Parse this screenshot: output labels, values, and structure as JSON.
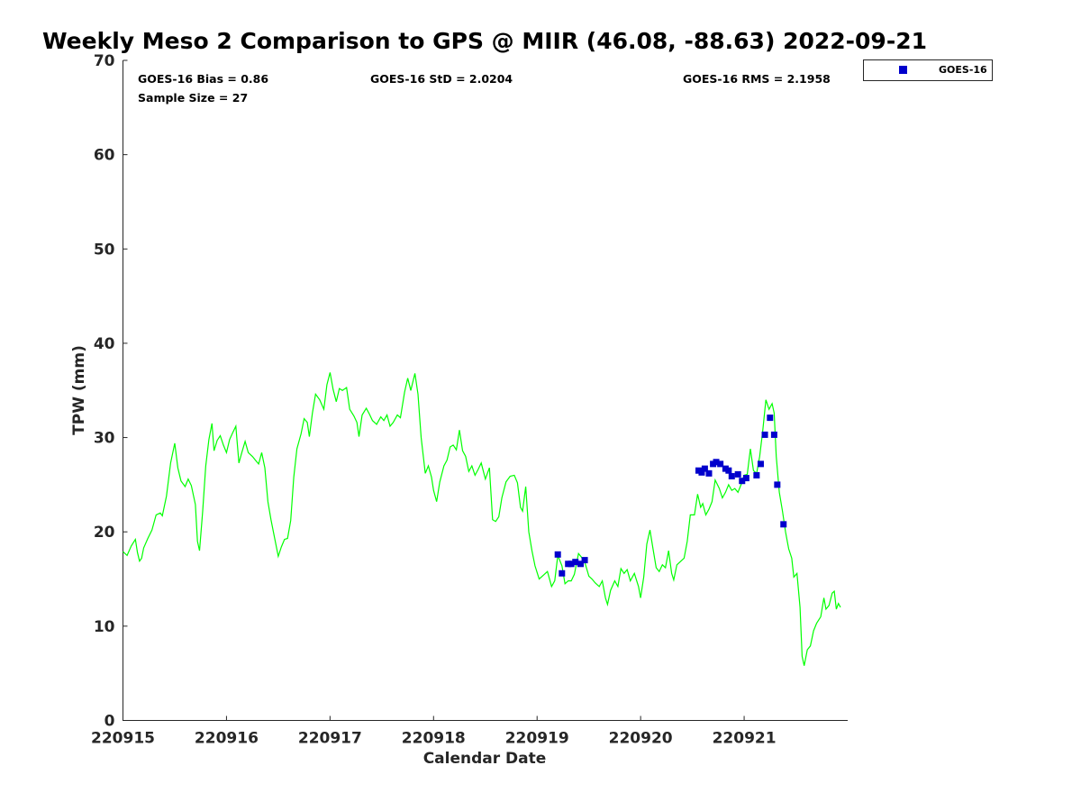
{
  "chart_data": {
    "type": "scatter",
    "title": "Weekly Meso 2 Comparison to GPS @ MIIR (46.08, -88.63) 2022-09-21",
    "xlabel": "Calendar Date",
    "ylabel": "TPW (mm)",
    "xlim": [
      0,
      7
    ],
    "ylim": [
      0,
      70
    ],
    "x_tick_labels": [
      "220915",
      "220916",
      "220917",
      "220918",
      "220919",
      "220920",
      "220921"
    ],
    "x_tick_values": [
      0,
      1,
      2,
      3,
      4,
      5,
      6
    ],
    "y_tick_values": [
      0,
      10,
      20,
      30,
      40,
      50,
      60,
      70
    ],
    "grid": false,
    "legend_position": "top-right, outside plot",
    "stats": {
      "bias": "GOES-16 Bias = 0.86",
      "std": "GOES-16 StD = 2.0204",
      "rms": "GOES-16 RMS = 2.1958",
      "sample": "Sample Size = 27"
    },
    "series": [
      {
        "name": "GOES-16",
        "kind": "scatter",
        "color": "#0000cc",
        "points": [
          [
            4.2,
            17.6
          ],
          [
            4.24,
            15.6
          ],
          [
            4.3,
            16.6
          ],
          [
            4.33,
            16.6
          ],
          [
            4.37,
            16.8
          ],
          [
            4.42,
            16.6
          ],
          [
            4.46,
            17.0
          ],
          [
            5.56,
            26.5
          ],
          [
            5.59,
            26.3
          ],
          [
            5.62,
            26.7
          ],
          [
            5.66,
            26.2
          ],
          [
            5.7,
            27.2
          ],
          [
            5.73,
            27.4
          ],
          [
            5.77,
            27.2
          ],
          [
            5.82,
            26.7
          ],
          [
            5.85,
            26.5
          ],
          [
            5.88,
            25.9
          ],
          [
            5.94,
            26.1
          ],
          [
            5.98,
            25.4
          ],
          [
            6.02,
            25.7
          ],
          [
            6.12,
            26.0
          ],
          [
            6.16,
            27.2
          ],
          [
            6.2,
            30.3
          ],
          [
            6.25,
            32.1
          ],
          [
            6.29,
            30.3
          ],
          [
            6.32,
            25.0
          ],
          [
            6.38,
            20.8
          ]
        ]
      },
      {
        "kind": "line",
        "color": "#00ff00",
        "points": [
          [
            0.0,
            17.9
          ],
          [
            0.04,
            17.5
          ],
          [
            0.08,
            18.5
          ],
          [
            0.12,
            19.2
          ],
          [
            0.14,
            17.8
          ],
          [
            0.16,
            16.9
          ],
          [
            0.18,
            17.2
          ],
          [
            0.2,
            18.3
          ],
          [
            0.24,
            19.3
          ],
          [
            0.28,
            20.2
          ],
          [
            0.32,
            21.8
          ],
          [
            0.36,
            22.0
          ],
          [
            0.38,
            21.7
          ],
          [
            0.42,
            23.8
          ],
          [
            0.46,
            27.3
          ],
          [
            0.5,
            29.4
          ],
          [
            0.53,
            26.8
          ],
          [
            0.56,
            25.4
          ],
          [
            0.6,
            24.8
          ],
          [
            0.63,
            25.6
          ],
          [
            0.66,
            24.9
          ],
          [
            0.7,
            22.9
          ],
          [
            0.72,
            19.0
          ],
          [
            0.74,
            18.0
          ],
          [
            0.77,
            22.2
          ],
          [
            0.8,
            27.0
          ],
          [
            0.83,
            29.8
          ],
          [
            0.86,
            31.5
          ],
          [
            0.88,
            28.6
          ],
          [
            0.91,
            29.7
          ],
          [
            0.94,
            30.2
          ],
          [
            0.97,
            29.2
          ],
          [
            1.0,
            28.4
          ],
          [
            1.03,
            29.8
          ],
          [
            1.06,
            30.5
          ],
          [
            1.09,
            31.2
          ],
          [
            1.12,
            27.3
          ],
          [
            1.15,
            28.5
          ],
          [
            1.18,
            29.6
          ],
          [
            1.21,
            28.4
          ],
          [
            1.25,
            28.0
          ],
          [
            1.28,
            27.6
          ],
          [
            1.31,
            27.2
          ],
          [
            1.34,
            28.4
          ],
          [
            1.37,
            26.8
          ],
          [
            1.4,
            23.2
          ],
          [
            1.43,
            21.3
          ],
          [
            1.46,
            19.6
          ],
          [
            1.5,
            17.4
          ],
          [
            1.53,
            18.4
          ],
          [
            1.56,
            19.2
          ],
          [
            1.59,
            19.3
          ],
          [
            1.62,
            21.2
          ],
          [
            1.65,
            25.8
          ],
          [
            1.68,
            28.8
          ],
          [
            1.72,
            30.4
          ],
          [
            1.75,
            32.0
          ],
          [
            1.78,
            31.6
          ],
          [
            1.8,
            30.1
          ],
          [
            1.83,
            32.6
          ],
          [
            1.86,
            34.6
          ],
          [
            1.9,
            34.0
          ],
          [
            1.94,
            33.0
          ],
          [
            1.97,
            35.6
          ],
          [
            2.0,
            36.9
          ],
          [
            2.03,
            35.1
          ],
          [
            2.06,
            33.8
          ],
          [
            2.09,
            35.2
          ],
          [
            2.12,
            35.0
          ],
          [
            2.16,
            35.3
          ],
          [
            2.19,
            33.0
          ],
          [
            2.23,
            32.3
          ],
          [
            2.26,
            31.6
          ],
          [
            2.28,
            30.1
          ],
          [
            2.31,
            32.4
          ],
          [
            2.35,
            33.1
          ],
          [
            2.38,
            32.5
          ],
          [
            2.41,
            31.8
          ],
          [
            2.45,
            31.4
          ],
          [
            2.49,
            32.2
          ],
          [
            2.52,
            31.8
          ],
          [
            2.55,
            32.4
          ],
          [
            2.58,
            31.2
          ],
          [
            2.61,
            31.6
          ],
          [
            2.65,
            32.4
          ],
          [
            2.68,
            32.1
          ],
          [
            2.72,
            34.8
          ],
          [
            2.75,
            36.3
          ],
          [
            2.78,
            35.0
          ],
          [
            2.82,
            36.8
          ],
          [
            2.85,
            34.6
          ],
          [
            2.88,
            30.0
          ],
          [
            2.92,
            26.2
          ],
          [
            2.95,
            27.0
          ],
          [
            2.98,
            25.8
          ],
          [
            3.0,
            24.4
          ],
          [
            3.03,
            23.2
          ],
          [
            3.06,
            25.3
          ],
          [
            3.1,
            27.0
          ],
          [
            3.13,
            27.6
          ],
          [
            3.16,
            29.0
          ],
          [
            3.19,
            29.2
          ],
          [
            3.22,
            28.7
          ],
          [
            3.25,
            30.8
          ],
          [
            3.28,
            28.6
          ],
          [
            3.31,
            28.0
          ],
          [
            3.34,
            26.4
          ],
          [
            3.37,
            27.0
          ],
          [
            3.4,
            26.0
          ],
          [
            3.43,
            26.6
          ],
          [
            3.46,
            27.3
          ],
          [
            3.5,
            25.6
          ],
          [
            3.54,
            26.8
          ],
          [
            3.57,
            21.3
          ],
          [
            3.6,
            21.1
          ],
          [
            3.63,
            21.6
          ],
          [
            3.66,
            23.6
          ],
          [
            3.7,
            25.3
          ],
          [
            3.74,
            25.9
          ],
          [
            3.78,
            26.0
          ],
          [
            3.81,
            25.2
          ],
          [
            3.84,
            22.6
          ],
          [
            3.86,
            22.2
          ],
          [
            3.89,
            24.8
          ],
          [
            3.92,
            20.0
          ],
          [
            3.95,
            18.0
          ],
          [
            3.98,
            16.4
          ],
          [
            4.02,
            15.0
          ],
          [
            4.06,
            15.4
          ],
          [
            4.1,
            15.8
          ],
          [
            4.14,
            14.2
          ],
          [
            4.17,
            14.8
          ],
          [
            4.2,
            17.5
          ],
          [
            4.24,
            16.4
          ],
          [
            4.27,
            14.5
          ],
          [
            4.3,
            14.8
          ],
          [
            4.33,
            14.8
          ],
          [
            4.36,
            15.5
          ],
          [
            4.4,
            17.7
          ],
          [
            4.43,
            17.3
          ],
          [
            4.46,
            16.8
          ],
          [
            4.5,
            15.3
          ],
          [
            4.53,
            15.0
          ],
          [
            4.56,
            14.6
          ],
          [
            4.6,
            14.2
          ],
          [
            4.63,
            14.8
          ],
          [
            4.66,
            13.0
          ],
          [
            4.68,
            12.3
          ],
          [
            4.71,
            13.8
          ],
          [
            4.75,
            14.8
          ],
          [
            4.78,
            14.2
          ],
          [
            4.81,
            16.1
          ],
          [
            4.84,
            15.6
          ],
          [
            4.87,
            16.0
          ],
          [
            4.9,
            14.8
          ],
          [
            4.94,
            15.6
          ],
          [
            4.98,
            14.2
          ],
          [
            5.0,
            13.0
          ],
          [
            5.03,
            15.2
          ],
          [
            5.06,
            18.7
          ],
          [
            5.09,
            20.2
          ],
          [
            5.12,
            18.2
          ],
          [
            5.15,
            16.2
          ],
          [
            5.18,
            15.8
          ],
          [
            5.21,
            16.5
          ],
          [
            5.24,
            16.2
          ],
          [
            5.27,
            18.0
          ],
          [
            5.3,
            15.6
          ],
          [
            5.32,
            14.9
          ],
          [
            5.35,
            16.5
          ],
          [
            5.38,
            16.8
          ],
          [
            5.42,
            17.2
          ],
          [
            5.45,
            19.0
          ],
          [
            5.48,
            21.8
          ],
          [
            5.52,
            21.8
          ],
          [
            5.55,
            24.0
          ],
          [
            5.58,
            22.6
          ],
          [
            5.6,
            23.0
          ],
          [
            5.63,
            21.8
          ],
          [
            5.66,
            22.4
          ],
          [
            5.69,
            23.2
          ],
          [
            5.72,
            25.5
          ],
          [
            5.76,
            24.6
          ],
          [
            5.79,
            23.6
          ],
          [
            5.82,
            24.2
          ],
          [
            5.85,
            25.0
          ],
          [
            5.88,
            24.4
          ],
          [
            5.91,
            24.6
          ],
          [
            5.94,
            24.2
          ],
          [
            5.97,
            25.0
          ],
          [
            6.0,
            26.0
          ],
          [
            6.03,
            26.1
          ],
          [
            6.06,
            28.8
          ],
          [
            6.09,
            26.5
          ],
          [
            6.12,
            26.2
          ],
          [
            6.15,
            28.0
          ],
          [
            6.18,
            30.8
          ],
          [
            6.21,
            34.0
          ],
          [
            6.24,
            33.0
          ],
          [
            6.27,
            33.6
          ],
          [
            6.29,
            32.6
          ],
          [
            6.31,
            28.0
          ],
          [
            6.34,
            24.2
          ],
          [
            6.37,
            22.2
          ],
          [
            6.4,
            20.0
          ],
          [
            6.43,
            18.2
          ],
          [
            6.46,
            17.2
          ],
          [
            6.48,
            15.2
          ],
          [
            6.51,
            15.6
          ],
          [
            6.54,
            12.0
          ],
          [
            6.56,
            6.8
          ],
          [
            6.58,
            5.8
          ],
          [
            6.61,
            7.5
          ],
          [
            6.64,
            7.9
          ],
          [
            6.67,
            9.5
          ],
          [
            6.7,
            10.3
          ],
          [
            6.74,
            11.0
          ],
          [
            6.77,
            13.0
          ],
          [
            6.79,
            11.8
          ],
          [
            6.82,
            12.2
          ],
          [
            6.85,
            13.5
          ],
          [
            6.87,
            13.7
          ],
          [
            6.89,
            11.8
          ],
          [
            6.91,
            12.4
          ],
          [
            6.93,
            12.0
          ]
        ]
      }
    ]
  }
}
